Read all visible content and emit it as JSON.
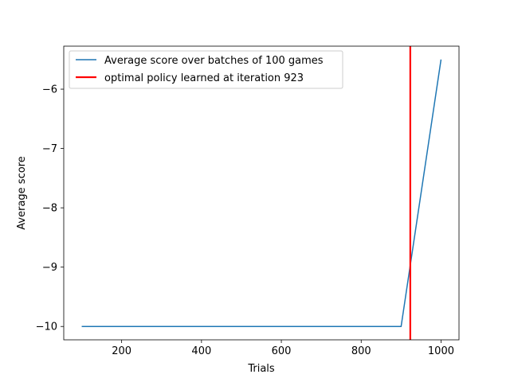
{
  "chart_data": {
    "type": "line",
    "xlabel": "Trials",
    "ylabel": "Average score",
    "xlim": [
      55,
      1045
    ],
    "ylim": [
      -10.225,
      -5.275
    ],
    "xticks": [
      200,
      400,
      600,
      800,
      1000
    ],
    "yticks": [
      -10,
      -9,
      -8,
      -7,
      -6
    ],
    "grid": false,
    "legend_position": "upper-left",
    "series": [
      {
        "name": "Average score over batches of 100 games",
        "color": "#1f77b4",
        "x": [
          100,
          200,
          300,
          400,
          500,
          600,
          700,
          800,
          900,
          1000
        ],
        "y": [
          -10,
          -10,
          -10,
          -10,
          -10,
          -10,
          -10,
          -10,
          -10,
          -5.5
        ]
      }
    ],
    "vlines": [
      {
        "name": "optimal policy learned at iteration 923",
        "color": "#ff0000",
        "x": 923
      }
    ]
  }
}
